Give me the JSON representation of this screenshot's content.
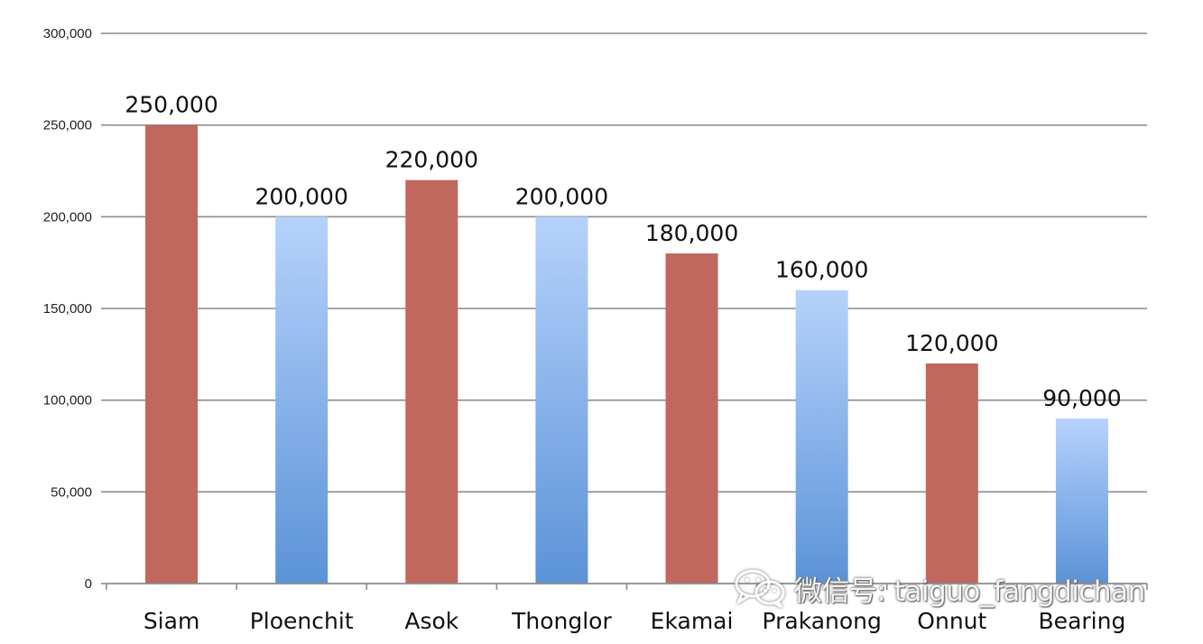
{
  "chart_data": {
    "type": "bar",
    "categories": [
      "Siam",
      "Ploenchit",
      "Asok",
      "Thonglor",
      "Ekamai",
      "Prakanong",
      "Onnut",
      "Bearing"
    ],
    "values": [
      250000,
      200000,
      220000,
      200000,
      180000,
      160000,
      120000,
      90000
    ],
    "data_labels": [
      "250,000",
      "200,000",
      "220,000",
      "200,000",
      "180,000",
      "160,000",
      "120,000",
      "90,000"
    ],
    "ylim": [
      0,
      300000
    ],
    "yticks": [
      0,
      50000,
      100000,
      150000,
      200000,
      250000,
      300000
    ],
    "ytick_labels": [
      "0",
      "50,000",
      "100,000",
      "150,000",
      "200,000",
      "250,000",
      "300,000"
    ],
    "grid": true,
    "legend": "none",
    "title": "",
    "xlabel": "",
    "ylabel": "",
    "colors": {
      "red_bar": "#c0675e",
      "blue_bar_top": "#b6d2fb",
      "blue_bar_bottom": "#5b93d8",
      "gridline": "#8c8c8c"
    },
    "bar_styles": [
      "red",
      "blue",
      "red",
      "blue",
      "red",
      "blue",
      "red",
      "blue"
    ]
  },
  "watermark": {
    "icon": "wechat-icon",
    "text": "微信号: taiguo_fangdichan"
  }
}
